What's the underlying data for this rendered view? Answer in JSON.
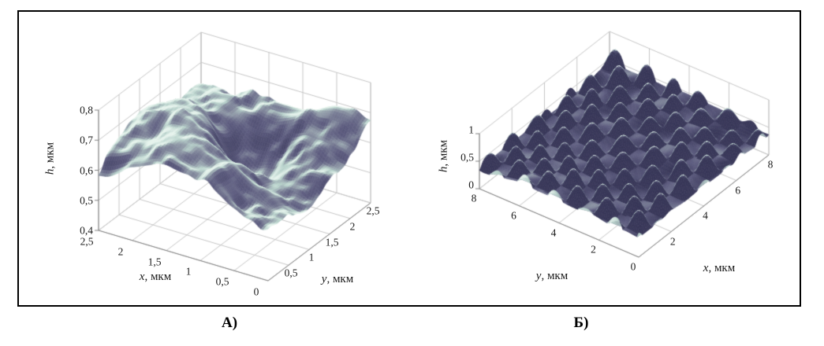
{
  "figure": {
    "captions": {
      "a": "А)",
      "b": "Б)"
    }
  },
  "chart_data": [
    {
      "id": "A",
      "panel_label": "А)",
      "type": "surface_3d",
      "title": "",
      "axes": {
        "x": {
          "var": "x",
          "unit": ", мкм",
          "range": [
            0,
            2.5
          ],
          "ticks": [
            {
              "v": 2.5,
              "label": "2,5"
            },
            {
              "v": 2,
              "label": "2"
            },
            {
              "v": 1.5,
              "label": "1,5"
            },
            {
              "v": 1,
              "label": "1"
            },
            {
              "v": 0.5,
              "label": "0,5"
            },
            {
              "v": 0,
              "label": "0"
            }
          ]
        },
        "y": {
          "var": "y",
          "unit": ", мкм",
          "range": [
            0,
            2.5
          ],
          "ticks": [
            {
              "v": 0.5,
              "label": "0,5"
            },
            {
              "v": 1,
              "label": "1"
            },
            {
              "v": 1.5,
              "label": "1,5"
            },
            {
              "v": 2,
              "label": "2"
            },
            {
              "v": 2.5,
              "label": "2,5"
            }
          ]
        },
        "z": {
          "var": "h",
          "unit": ", мкм",
          "range": [
            0.4,
            0.8
          ],
          "ticks": [
            {
              "v": 0.4,
              "label": "0,4"
            },
            {
              "v": 0.5,
              "label": "0,5"
            },
            {
              "v": 0.6,
              "label": "0,6"
            },
            {
              "v": 0.7,
              "label": "0,7"
            },
            {
              "v": 0.8,
              "label": "0,8"
            }
          ]
        }
      },
      "surface": {
        "style": "terrain",
        "seed": 11,
        "base": 0.585,
        "noise": [
          [
            2.2,
            0.05
          ],
          [
            6.5,
            0.028
          ],
          [
            18,
            0.012
          ]
        ],
        "features": [
          {
            "type": "bump",
            "x": 0.58,
            "y": 0.5,
            "amp": 0.13,
            "sigma": 0.38
          },
          {
            "type": "bump",
            "x": 0.8,
            "y": 0.3,
            "amp": 0.05,
            "sigma": 0.22
          },
          {
            "type": "pit",
            "x": 0.5,
            "y": 0.66,
            "amp": 0.17,
            "sigma": 0.15
          },
          {
            "type": "pit",
            "x": 0.2,
            "y": 0.3,
            "amp": 0.05,
            "sigma": 0.28
          },
          {
            "type": "bump",
            "x": 0.1,
            "y": 0.93,
            "amp": 0.07,
            "sigma": 0.13
          },
          {
            "type": "pit",
            "x": 0.05,
            "y": 0.78,
            "amp": 0.06,
            "sigma": 0.1
          }
        ],
        "clamp": [
          0.452,
          0.798
        ]
      },
      "shade": {
        "k0": 0.82,
        "kh": 0.25,
        "hmid": 0.5,
        "kdir": 0.5,
        "kcross": 0.06,
        "ksat": 0.6
      },
      "palette": [
        [
          0,
          "#353456"
        ],
        [
          0.35,
          "#5d5c7f"
        ],
        [
          0.6,
          "#8d96a5"
        ],
        [
          0.8,
          "#b8d2cb"
        ],
        [
          1,
          "#e6f3ed"
        ]
      ]
    },
    {
      "id": "B",
      "panel_label": "Б)",
      "type": "surface_3d",
      "title": "",
      "axes": {
        "x": {
          "var": "x",
          "unit": ", мкм",
          "range": [
            0,
            8
          ],
          "ticks": [
            {
              "v": 2,
              "label": "2"
            },
            {
              "v": 4,
              "label": "4"
            },
            {
              "v": 6,
              "label": "6"
            },
            {
              "v": 8,
              "label": "8"
            }
          ]
        },
        "y": {
          "var": "y",
          "unit": ", мкм",
          "range": [
            0,
            8
          ],
          "ticks": [
            {
              "v": 8,
              "label": "8"
            },
            {
              "v": 6,
              "label": "6"
            },
            {
              "v": 4,
              "label": "4"
            },
            {
              "v": 2,
              "label": "2"
            },
            {
              "v": 0,
              "label": "0"
            }
          ]
        },
        "z": {
          "var": "h",
          "unit": ", мкм",
          "range": [
            0,
            1
          ],
          "ticks": [
            {
              "v": 0,
              "label": "0"
            },
            {
              "v": 0.5,
              "label": "0,5"
            },
            {
              "v": 1,
              "label": "1"
            }
          ]
        }
      },
      "surface": {
        "style": "bumps",
        "seed": 5,
        "base": 0.4,
        "bump_freq": 5.5,
        "bump_amp": 0.33,
        "noise": [
          [
            3,
            0.05
          ],
          [
            9,
            0.04
          ]
        ],
        "clamp": [
          0.06,
          0.97
        ]
      },
      "shade": {
        "k0": 0.2,
        "kh": 1.3,
        "hmid": 0.3,
        "kdir": 0.4,
        "kcross": 0.03,
        "ksat": 0.5
      },
      "palette": [
        [
          0,
          "#353456"
        ],
        [
          0.35,
          "#5d5c7f"
        ],
        [
          0.6,
          "#8d96a5"
        ],
        [
          0.8,
          "#b8d2cb"
        ],
        [
          1,
          "#e6f3ed"
        ]
      ]
    }
  ]
}
